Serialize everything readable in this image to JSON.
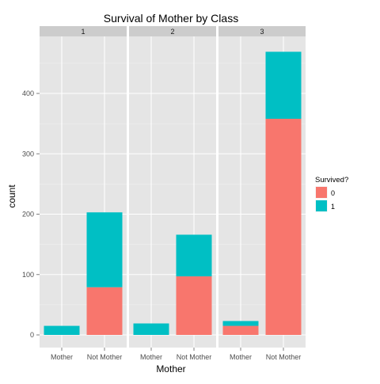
{
  "chart_data": {
    "type": "bar",
    "stacked": true,
    "title": "Survival of Mother by Class",
    "xlabel": "Mother",
    "ylabel": "count",
    "ylim": [
      0,
      500
    ],
    "yticks": [
      0,
      100,
      200,
      300,
      400
    ],
    "categories": [
      "Mother",
      "Not Mother"
    ],
    "legend": {
      "title": "Survived?",
      "position": "right",
      "entries": [
        {
          "label": "0",
          "color": "#F8766D"
        },
        {
          "label": "1",
          "color": "#00BFC4"
        }
      ]
    },
    "panels": [
      {
        "label": "1",
        "series": {
          "0": [
            0,
            79
          ],
          "1": [
            15,
            124
          ]
        }
      },
      {
        "label": "2",
        "series": {
          "0": [
            0,
            97
          ],
          "1": [
            19,
            69
          ]
        }
      },
      {
        "label": "3",
        "series": {
          "0": [
            15,
            358
          ],
          "1": [
            8,
            111
          ]
        }
      }
    ],
    "colors": {
      "panel_bg": "#E5E5E5",
      "strip_bg": "#CCCCCC",
      "grid_major": "#FFFFFF",
      "grid_minor": "#F2F2F2"
    }
  }
}
